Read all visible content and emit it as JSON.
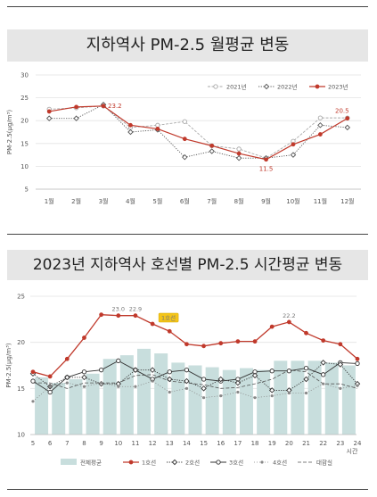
{
  "chart_data": [
    {
      "type": "line",
      "title": "지하역사 PM-2.5 월평균 변동",
      "ylabel": "PM-2.5(μg/m³)",
      "ylim": [
        5,
        30
      ],
      "yticks": [
        "5",
        "10",
        "15",
        "20",
        "25",
        "30"
      ],
      "categories": [
        "1월",
        "2월",
        "3월",
        "4월",
        "5월",
        "6월",
        "7월",
        "8월",
        "9월",
        "10월",
        "11월",
        "12월"
      ],
      "series": [
        {
          "name": "2021년",
          "color": "#aaaaaa",
          "values": [
            22.5,
            22.8,
            23.2,
            18.5,
            19.0,
            19.8,
            14.5,
            13.8,
            11.8,
            15.5,
            20.6,
            20.6
          ]
        },
        {
          "name": "2022년",
          "color": "#555555",
          "values": [
            20.5,
            20.5,
            23.5,
            17.5,
            18.0,
            12.0,
            13.3,
            11.8,
            11.8,
            12.5,
            19.0,
            18.5
          ]
        },
        {
          "name": "2023년",
          "color": "#c0392b",
          "values": [
            22.0,
            23.0,
            23.2,
            19.0,
            18.2,
            16.0,
            14.5,
            12.8,
            11.5,
            14.8,
            17.0,
            20.5
          ]
        }
      ],
      "annotations": [
        "23.2",
        "11.5",
        "20.5"
      ],
      "legend": "top-right"
    },
    {
      "type": "bar+line",
      "title": "2023년 지하역사 호선별 PM-2.5 시간평균 변동",
      "ylabel": "PM-2.5(μg/m³)",
      "xlabel": "시간",
      "ylim": [
        10,
        25
      ],
      "yticks": [
        "10",
        "15",
        "20",
        "25"
      ],
      "categories": [
        "5",
        "6",
        "7",
        "8",
        "9",
        "10",
        "11",
        "12",
        "13",
        "14",
        "15",
        "16",
        "17",
        "18",
        "19",
        "20",
        "21",
        "22",
        "23",
        "24"
      ],
      "bar_series": {
        "name": "전체평균",
        "color": "#c8dedd",
        "values": [
          16.2,
          15.6,
          16.0,
          16.6,
          18.2,
          18.6,
          19.3,
          18.8,
          17.8,
          17.5,
          17.3,
          17.0,
          17.2,
          17.0,
          18.0,
          18.0,
          18.0,
          17.8,
          17.5,
          17.0
        ]
      },
      "series": [
        {
          "name": "1호선",
          "color": "#c0392b",
          "values": [
            16.8,
            16.3,
            18.2,
            20.5,
            23.0,
            22.9,
            22.9,
            22.0,
            21.2,
            19.8,
            19.6,
            19.9,
            20.1,
            20.1,
            21.7,
            22.2,
            21.0,
            20.2,
            19.8,
            18.2
          ]
        },
        {
          "name": "2호선",
          "color": "#333333",
          "values": [
            16.6,
            15.2,
            16.2,
            16.2,
            15.5,
            15.5,
            17.0,
            17.0,
            16.0,
            15.8,
            15.0,
            16.0,
            15.6,
            16.4,
            14.8,
            14.8,
            16.0,
            17.8,
            17.6,
            15.5
          ]
        },
        {
          "name": "3호선",
          "color": "#333333",
          "values": [
            15.8,
            14.6,
            16.2,
            16.8,
            17.0,
            18.0,
            17.0,
            16.0,
            16.8,
            17.0,
            16.0,
            15.8,
            16.0,
            16.8,
            16.9,
            16.9,
            17.2,
            16.5,
            17.8,
            17.7
          ]
        },
        {
          "name": "4호선",
          "color": "#888888",
          "values": [
            13.6,
            15.2,
            15.6,
            15.2,
            15.6,
            15.2,
            15.2,
            15.8,
            14.6,
            15.0,
            14.0,
            14.2,
            14.6,
            14.0,
            14.2,
            14.5,
            14.5,
            15.5,
            15.0,
            15.3
          ]
        },
        {
          "name": "대합실",
          "color": "#555555",
          "values": [
            15.6,
            15.6,
            15.0,
            15.6,
            15.6,
            15.6,
            16.4,
            16.5,
            15.8,
            15.6,
            15.4,
            15.0,
            15.1,
            15.5,
            16.0,
            17.0,
            16.8,
            15.5,
            15.5,
            15.0
          ]
        }
      ],
      "annotations": [
        "23.0",
        "22.9",
        "22.2"
      ],
      "callout": "1호선",
      "legend": "bottom"
    }
  ]
}
